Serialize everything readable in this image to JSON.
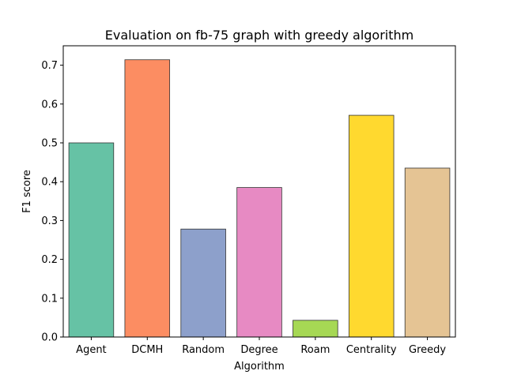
{
  "chart_data": {
    "type": "bar",
    "title": "Evaluation on fb-75 graph with greedy algorithm",
    "xlabel": "Algorithm",
    "ylabel": "F1 score",
    "categories": [
      "Agent",
      "DCMH",
      "Random",
      "Degree",
      "Roam",
      "Centrality",
      "Greedy"
    ],
    "values": [
      0.5,
      0.714,
      0.278,
      0.385,
      0.043,
      0.571,
      0.435
    ],
    "colors": [
      "#66c2a5",
      "#fc8d62",
      "#8da0cb",
      "#e78ac3",
      "#a6d854",
      "#ffd92f",
      "#e5c494"
    ],
    "ylim": [
      0,
      0.75
    ],
    "yticks": [
      "0.0",
      "0.1",
      "0.2",
      "0.3",
      "0.4",
      "0.5",
      "0.6",
      "0.7"
    ],
    "grid": false,
    "legend": false
  }
}
